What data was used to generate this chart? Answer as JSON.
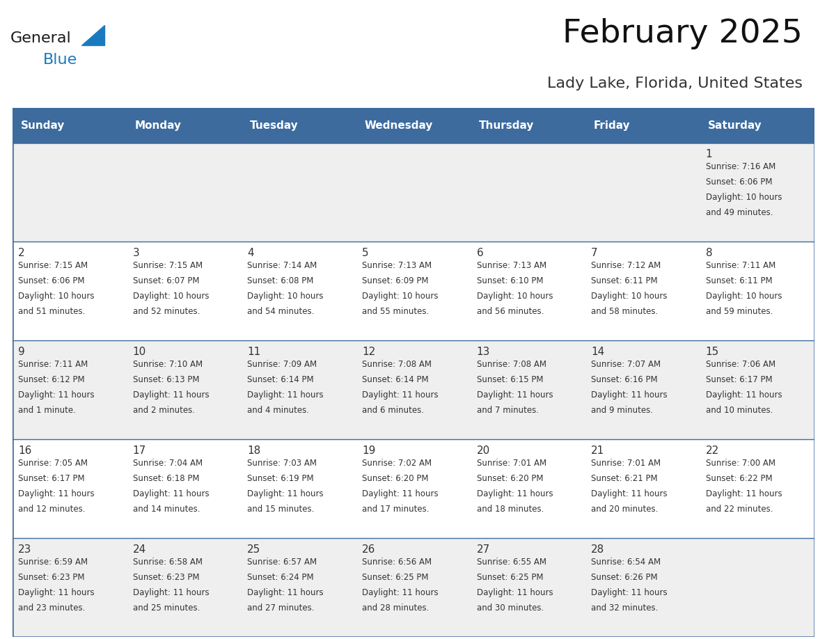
{
  "title": "February 2025",
  "subtitle": "Lady Lake, Florida, United States",
  "header_bg_color": "#3d6b9e",
  "header_text_color": "#ffffff",
  "cell_bg_color_odd": "#efefef",
  "cell_bg_color_even": "#ffffff",
  "grid_color": "#3d6b9e",
  "day_number_color": "#333333",
  "cell_text_color": "#333333",
  "days_of_week": [
    "Sunday",
    "Monday",
    "Tuesday",
    "Wednesday",
    "Thursday",
    "Friday",
    "Saturday"
  ],
  "weeks": [
    [
      {
        "day": null,
        "sunrise": null,
        "sunset": null,
        "daylight_line1": null,
        "daylight_line2": null
      },
      {
        "day": null,
        "sunrise": null,
        "sunset": null,
        "daylight_line1": null,
        "daylight_line2": null
      },
      {
        "day": null,
        "sunrise": null,
        "sunset": null,
        "daylight_line1": null,
        "daylight_line2": null
      },
      {
        "day": null,
        "sunrise": null,
        "sunset": null,
        "daylight_line1": null,
        "daylight_line2": null
      },
      {
        "day": null,
        "sunrise": null,
        "sunset": null,
        "daylight_line1": null,
        "daylight_line2": null
      },
      {
        "day": null,
        "sunrise": null,
        "sunset": null,
        "daylight_line1": null,
        "daylight_line2": null
      },
      {
        "day": 1,
        "sunrise": "7:16 AM",
        "sunset": "6:06 PM",
        "daylight_line1": "Daylight: 10 hours",
        "daylight_line2": "and 49 minutes."
      }
    ],
    [
      {
        "day": 2,
        "sunrise": "7:15 AM",
        "sunset": "6:06 PM",
        "daylight_line1": "Daylight: 10 hours",
        "daylight_line2": "and 51 minutes."
      },
      {
        "day": 3,
        "sunrise": "7:15 AM",
        "sunset": "6:07 PM",
        "daylight_line1": "Daylight: 10 hours",
        "daylight_line2": "and 52 minutes."
      },
      {
        "day": 4,
        "sunrise": "7:14 AM",
        "sunset": "6:08 PM",
        "daylight_line1": "Daylight: 10 hours",
        "daylight_line2": "and 54 minutes."
      },
      {
        "day": 5,
        "sunrise": "7:13 AM",
        "sunset": "6:09 PM",
        "daylight_line1": "Daylight: 10 hours",
        "daylight_line2": "and 55 minutes."
      },
      {
        "day": 6,
        "sunrise": "7:13 AM",
        "sunset": "6:10 PM",
        "daylight_line1": "Daylight: 10 hours",
        "daylight_line2": "and 56 minutes."
      },
      {
        "day": 7,
        "sunrise": "7:12 AM",
        "sunset": "6:11 PM",
        "daylight_line1": "Daylight: 10 hours",
        "daylight_line2": "and 58 minutes."
      },
      {
        "day": 8,
        "sunrise": "7:11 AM",
        "sunset": "6:11 PM",
        "daylight_line1": "Daylight: 10 hours",
        "daylight_line2": "and 59 minutes."
      }
    ],
    [
      {
        "day": 9,
        "sunrise": "7:11 AM",
        "sunset": "6:12 PM",
        "daylight_line1": "Daylight: 11 hours",
        "daylight_line2": "and 1 minute."
      },
      {
        "day": 10,
        "sunrise": "7:10 AM",
        "sunset": "6:13 PM",
        "daylight_line1": "Daylight: 11 hours",
        "daylight_line2": "and 2 minutes."
      },
      {
        "day": 11,
        "sunrise": "7:09 AM",
        "sunset": "6:14 PM",
        "daylight_line1": "Daylight: 11 hours",
        "daylight_line2": "and 4 minutes."
      },
      {
        "day": 12,
        "sunrise": "7:08 AM",
        "sunset": "6:14 PM",
        "daylight_line1": "Daylight: 11 hours",
        "daylight_line2": "and 6 minutes."
      },
      {
        "day": 13,
        "sunrise": "7:08 AM",
        "sunset": "6:15 PM",
        "daylight_line1": "Daylight: 11 hours",
        "daylight_line2": "and 7 minutes."
      },
      {
        "day": 14,
        "sunrise": "7:07 AM",
        "sunset": "6:16 PM",
        "daylight_line1": "Daylight: 11 hours",
        "daylight_line2": "and 9 minutes."
      },
      {
        "day": 15,
        "sunrise": "7:06 AM",
        "sunset": "6:17 PM",
        "daylight_line1": "Daylight: 11 hours",
        "daylight_line2": "and 10 minutes."
      }
    ],
    [
      {
        "day": 16,
        "sunrise": "7:05 AM",
        "sunset": "6:17 PM",
        "daylight_line1": "Daylight: 11 hours",
        "daylight_line2": "and 12 minutes."
      },
      {
        "day": 17,
        "sunrise": "7:04 AM",
        "sunset": "6:18 PM",
        "daylight_line1": "Daylight: 11 hours",
        "daylight_line2": "and 14 minutes."
      },
      {
        "day": 18,
        "sunrise": "7:03 AM",
        "sunset": "6:19 PM",
        "daylight_line1": "Daylight: 11 hours",
        "daylight_line2": "and 15 minutes."
      },
      {
        "day": 19,
        "sunrise": "7:02 AM",
        "sunset": "6:20 PM",
        "daylight_line1": "Daylight: 11 hours",
        "daylight_line2": "and 17 minutes."
      },
      {
        "day": 20,
        "sunrise": "7:01 AM",
        "sunset": "6:20 PM",
        "daylight_line1": "Daylight: 11 hours",
        "daylight_line2": "and 18 minutes."
      },
      {
        "day": 21,
        "sunrise": "7:01 AM",
        "sunset": "6:21 PM",
        "daylight_line1": "Daylight: 11 hours",
        "daylight_line2": "and 20 minutes."
      },
      {
        "day": 22,
        "sunrise": "7:00 AM",
        "sunset": "6:22 PM",
        "daylight_line1": "Daylight: 11 hours",
        "daylight_line2": "and 22 minutes."
      }
    ],
    [
      {
        "day": 23,
        "sunrise": "6:59 AM",
        "sunset": "6:23 PM",
        "daylight_line1": "Daylight: 11 hours",
        "daylight_line2": "and 23 minutes."
      },
      {
        "day": 24,
        "sunrise": "6:58 AM",
        "sunset": "6:23 PM",
        "daylight_line1": "Daylight: 11 hours",
        "daylight_line2": "and 25 minutes."
      },
      {
        "day": 25,
        "sunrise": "6:57 AM",
        "sunset": "6:24 PM",
        "daylight_line1": "Daylight: 11 hours",
        "daylight_line2": "and 27 minutes."
      },
      {
        "day": 26,
        "sunrise": "6:56 AM",
        "sunset": "6:25 PM",
        "daylight_line1": "Daylight: 11 hours",
        "daylight_line2": "and 28 minutes."
      },
      {
        "day": 27,
        "sunrise": "6:55 AM",
        "sunset": "6:25 PM",
        "daylight_line1": "Daylight: 11 hours",
        "daylight_line2": "and 30 minutes."
      },
      {
        "day": 28,
        "sunrise": "6:54 AM",
        "sunset": "6:26 PM",
        "daylight_line1": "Daylight: 11 hours",
        "daylight_line2": "and 32 minutes."
      },
      {
        "day": null,
        "sunrise": null,
        "sunset": null,
        "daylight_line1": null,
        "daylight_line2": null
      }
    ]
  ],
  "logo_color_general": "#1a1a1a",
  "logo_color_blue": "#1a7abf",
  "logo_triangle_color": "#1a7abf",
  "title_fontsize": 34,
  "subtitle_fontsize": 16,
  "header_fontsize": 11,
  "day_num_fontsize": 11,
  "cell_text_fontsize": 8.5
}
